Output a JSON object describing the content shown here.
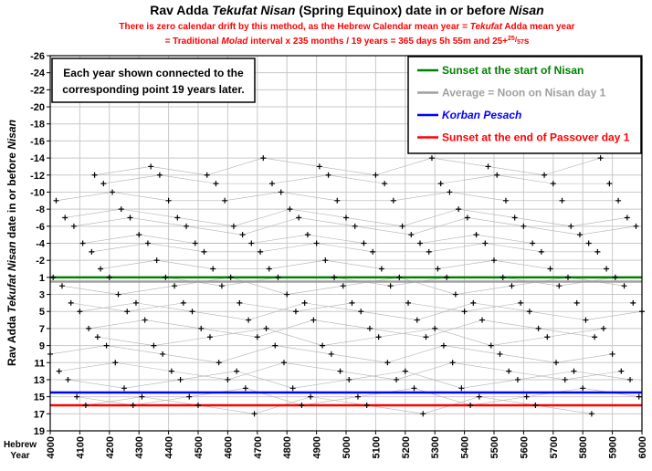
{
  "chart_data": {
    "type": "scatter",
    "title_parts": [
      "Rav Adda ",
      "Tekufat Nisan",
      "  (Spring Equinox) date in or before ",
      "Nisan"
    ],
    "subtitle_lines": [
      [
        "There is zero calendar drift by this method, as the Hebrew Calendar mean year = ",
        "Tekufat",
        " Adda mean year"
      ],
      [
        "= Traditional ",
        "Molad",
        " interval x 235 months / 19 years = 365 days 5h 55m and 25+",
        "25",
        "/",
        "57",
        "s"
      ]
    ],
    "y_label_parts": [
      "Rav Adda ",
      "Tekufat Nisan",
      " date in or before ",
      "Nisan"
    ],
    "x_label": "Hebrew Year",
    "annotation": [
      "Each year shown connected to the",
      "corresponding point 19 years later."
    ],
    "connect_step": 19,
    "marker_color": "#000000",
    "line_color": "#b0b0b0",
    "xlim": [
      4000,
      6000
    ],
    "xticks": [
      4000,
      4100,
      4200,
      4300,
      4400,
      4500,
      4600,
      4700,
      4800,
      4900,
      5000,
      5100,
      5200,
      5300,
      5400,
      5500,
      5600,
      5700,
      5800,
      5900,
      6000
    ],
    "ylim": [
      -26,
      19
    ],
    "y_inverted": true,
    "skip_zero": true,
    "yticks": [
      -26,
      -24,
      -22,
      -20,
      -18,
      -16,
      -14,
      -12,
      -10,
      -8,
      -6,
      -4,
      -2,
      1,
      3,
      5,
      7,
      9,
      11,
      13,
      15,
      17,
      19
    ],
    "grid": true,
    "reference_lines": [
      {
        "label": "Sunset at the start of Nisan",
        "value": 1,
        "color": "#008000"
      },
      {
        "label": "Average = Noon on Nisan day 1",
        "value": 1.5,
        "color": "#a0a0a0"
      },
      {
        "label": "Korban Pesach",
        "value": 14.5,
        "color": "#0000ff",
        "italic": true
      },
      {
        "label": "Sunset at the end of Passover day 1",
        "value": 16,
        "color": "#ff0000"
      }
    ],
    "legend": "upper right",
    "x": [
      4000,
      4010,
      4020,
      4030,
      4040,
      4050,
      4060,
      4070,
      4080,
      4090,
      4100,
      4110,
      4120,
      4130,
      4140,
      4150,
      4160,
      4170,
      4180,
      4190,
      4200,
      4210,
      4220,
      4230,
      4240,
      4250,
      4260,
      4270,
      4280,
      4290,
      4300,
      4310,
      4320,
      4330,
      4340,
      4350,
      4360,
      4370,
      4380,
      4390,
      4400,
      4410,
      4420,
      4430,
      4440,
      4450,
      4460,
      4470,
      4480,
      4490,
      4500,
      4510,
      4520,
      4530,
      4540,
      4550,
      4560,
      4570,
      4580,
      4590,
      4600,
      4610,
      4620,
      4630,
      4640,
      4650,
      4660,
      4670,
      4680,
      4690,
      4700,
      4710,
      4720,
      4730,
      4740,
      4750,
      4760,
      4770,
      4780,
      4790,
      4800,
      4810,
      4820,
      4830,
      4840,
      4850,
      4860,
      4870,
      4880,
      4890,
      4900,
      4910,
      4920,
      4930,
      4940,
      4950,
      4960,
      4970,
      4980,
      4990,
      5000,
      5010,
      5020,
      5030,
      5040,
      5050,
      5060,
      5070,
      5080,
      5090,
      5100,
      5110,
      5120,
      5130,
      5140,
      5150,
      5160,
      5170,
      5180,
      5190,
      5200,
      5210,
      5220,
      5230,
      5240,
      5250,
      5260,
      5270,
      5280,
      5290,
      5300,
      5310,
      5320,
      5330,
      5340,
      5350,
      5360,
      5370,
      5380,
      5390,
      5400,
      5410,
      5420,
      5430,
      5440,
      5450,
      5460,
      5470,
      5480,
      5490,
      5500,
      5510,
      5520,
      5530,
      5540,
      5550,
      5560,
      5570,
      5580,
      5590,
      5600,
      5610,
      5620,
      5630,
      5640,
      5650,
      5660,
      5670,
      5680,
      5690,
      5700,
      5710,
      5720,
      5730,
      5740,
      5750,
      5760,
      5770,
      5780,
      5790,
      5800,
      5810,
      5820,
      5830,
      5840,
      5850,
      5860,
      5870,
      5880,
      5890,
      5900,
      5910,
      5920,
      5930,
      5940,
      5950,
      5960,
      5970,
      5980,
      5990,
      6000
    ],
    "values": [
      10,
      1,
      -9,
      12,
      2,
      -7,
      13,
      4,
      -6,
      15,
      5,
      -4,
      16,
      7,
      -3,
      -12,
      8,
      -1,
      -11,
      9,
      1,
      -10,
      11,
      3,
      -8,
      14,
      5,
      -7,
      16,
      4,
      -5,
      15,
      6,
      -4,
      -13,
      9,
      -2,
      -12,
      10,
      1,
      -9,
      12,
      2,
      -7,
      13,
      4,
      -6,
      15,
      5,
      -4,
      16,
      7,
      -3,
      -12,
      8,
      -1,
      -11,
      11,
      2,
      -9,
      13,
      1,
      -6,
      12,
      4,
      -5,
      14,
      6,
      -4,
      17,
      8,
      -3,
      -14,
      7,
      -1,
      -11,
      9,
      1,
      -10,
      11,
      3,
      -8,
      14,
      5,
      -7,
      16,
      4,
      -5,
      15,
      6,
      -4,
      -13,
      9,
      -2,
      -12,
      10,
      1,
      -9,
      12,
      2,
      -7,
      13,
      4,
      -6,
      15,
      5,
      -4,
      16,
      7,
      -3,
      -12,
      8,
      -1,
      -11,
      11,
      2,
      -9,
      13,
      1,
      -6,
      12,
      4,
      -5,
      14,
      6,
      -4,
      17,
      8,
      -3,
      -14,
      7,
      -1,
      -11,
      9,
      1,
      -10,
      11,
      3,
      -8,
      14,
      5,
      -7,
      16,
      4,
      -5,
      15,
      6,
      -4,
      -13,
      9,
      -2,
      -12,
      10,
      1,
      -9,
      12,
      2,
      -7,
      13,
      4,
      -6,
      15,
      5,
      -4,
      16,
      7,
      -3,
      -12,
      8,
      -1,
      -11,
      11,
      2,
      -9,
      13,
      1,
      -6,
      12,
      4,
      -5,
      14,
      6,
      -4,
      17,
      8,
      -3,
      -14,
      7,
      -1,
      -11,
      10,
      1,
      -9,
      12,
      2,
      -7,
      13,
      4,
      -6,
      15,
      5
    ]
  }
}
